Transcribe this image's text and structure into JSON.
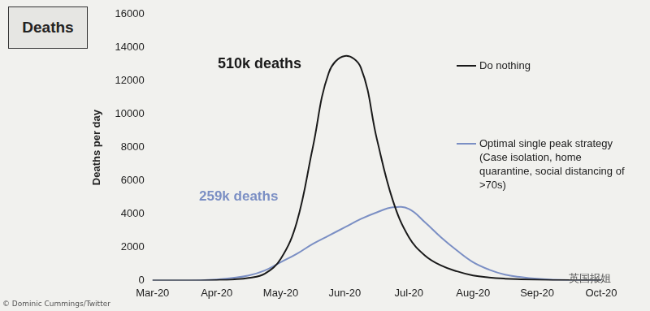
{
  "chart_data": {
    "type": "line",
    "title": "Deaths",
    "y_label": "Deaths per day",
    "categories": [
      "Mar-20",
      null,
      null,
      null,
      "Apr-20",
      null,
      null,
      null,
      "May-20",
      null,
      null,
      null,
      "Jun-20",
      null,
      null,
      null,
      "Jul-20",
      null,
      null,
      null,
      "Aug-20",
      null,
      null,
      null,
      "Sep-20",
      null,
      null,
      null,
      "Oct-20"
    ],
    "series": [
      {
        "name": "Do nothing",
        "color": "#1a1a1a",
        "values": [
          0,
          0,
          0,
          0,
          20,
          60,
          150,
          400,
          1300,
          3500,
          8000,
          12500,
          13500,
          12800,
          8500,
          4800,
          2600,
          1500,
          900,
          550,
          300,
          180,
          110,
          70,
          40,
          25,
          15,
          10,
          5
        ]
      },
      {
        "name": "Optimal single peak strategy (Case isolation, home quarantine, social distancing of >70s)",
        "color": "#7b8fc4",
        "values": [
          0,
          0,
          0,
          10,
          60,
          150,
          300,
          600,
          1100,
          1600,
          2200,
          2700,
          3200,
          3700,
          4100,
          4400,
          4300,
          3500,
          2600,
          1800,
          1100,
          650,
          350,
          200,
          100,
          50,
          20,
          10,
          5
        ]
      }
    ],
    "ylim": [
      0,
      16000
    ],
    "yticks": [
      0,
      2000,
      4000,
      6000,
      8000,
      10000,
      12000,
      14000,
      16000
    ],
    "grid": false,
    "legend": "upper right",
    "annotations": [
      {
        "text": "510k deaths",
        "color": "#1a1a1a"
      },
      {
        "text": "259k deaths",
        "color": "#7b8fc4"
      },
      {
        "text": "© Dominic Cummings/Twitter"
      },
      {
        "text": "英国报姐"
      }
    ]
  }
}
